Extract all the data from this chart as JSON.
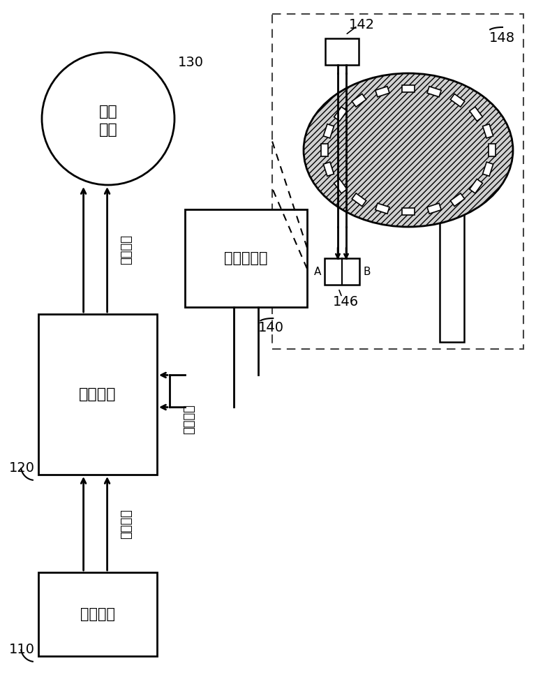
{
  "bg_color": "#ffffff",
  "label_110": "指令装置",
  "label_120": "微控制器",
  "label_130_1": "伺服",
  "label_130_2": "马达",
  "label_140": "光电编码器",
  "label_cmd": "指令脉冲",
  "label_drv": "驱动脉冲",
  "label_fb": "反馈脉冲",
  "ref_110": "110",
  "ref_120": "120",
  "ref_130": "130",
  "ref_140": "140",
  "ref_142": "142",
  "ref_146": "146",
  "ref_148": "148",
  "label_A": "A",
  "label_B": "B",
  "font_size_label": 14,
  "font_size_ref": 14,
  "font_size_small": 11,
  "font_size_arrow_label": 13
}
